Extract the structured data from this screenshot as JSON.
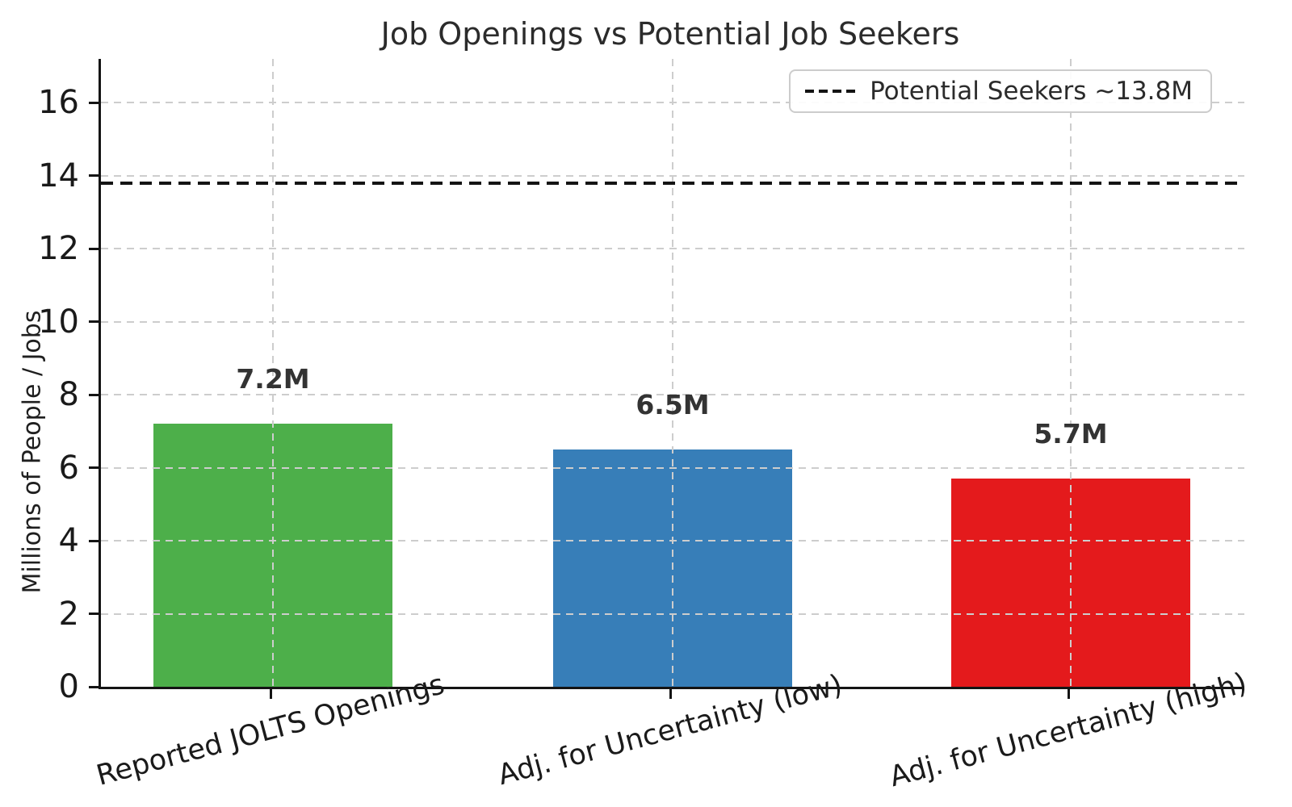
{
  "chart_data": {
    "type": "bar",
    "title": "Job Openings vs Potential Job Seekers",
    "ylabel": "Millions of People / Jobs",
    "xlabel": "",
    "categories": [
      "Reported JOLTS Openings",
      "Adj. for Uncertainty (low)",
      "Adj. for Uncertainty (high)"
    ],
    "values": [
      7.2,
      6.5,
      5.7
    ],
    "bar_labels": [
      "7.2M",
      "6.5M",
      "5.7M"
    ],
    "bar_colors": [
      "#4daf4a",
      "#377eb8",
      "#e41a1c"
    ],
    "yticks": [
      0,
      2,
      4,
      6,
      8,
      10,
      12,
      14,
      16
    ],
    "ylim": [
      0,
      17.2
    ],
    "grid": true,
    "grid_color": "#cdcdcd",
    "reference_line": {
      "value": 13.8,
      "label": "Potential Seekers ~13.8M",
      "color": "#141414",
      "style": "dashed"
    },
    "legend_position": "upper right",
    "text_color": "#1a1a1a"
  }
}
